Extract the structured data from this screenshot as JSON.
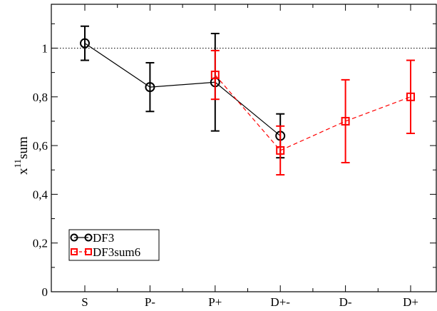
{
  "chart_data": {
    "type": "line",
    "categories": [
      "S",
      "P-",
      "P+",
      "D+-",
      "D-",
      "D+"
    ],
    "xlabel": "",
    "ylabel": {
      "base": "x",
      "superscript": "11",
      "subscript": "sum"
    },
    "ylim": [
      0,
      1.18
    ],
    "yticks": [
      {
        "value": 0,
        "label": "0"
      },
      {
        "value": 0.2,
        "label": "0,2"
      },
      {
        "value": 0.4,
        "label": "0,4"
      },
      {
        "value": 0.6,
        "label": "0,6"
      },
      {
        "value": 0.8,
        "label": "0,8"
      },
      {
        "value": 1.0,
        "label": "1"
      }
    ],
    "reference_line": {
      "value": 1.0,
      "style": "dotted"
    },
    "grid": false,
    "legend_position": "bottom-left",
    "series": [
      {
        "name": "DF3",
        "color": "#000000",
        "marker": "circle",
        "line_style": "solid",
        "points": [
          {
            "category": "S",
            "y": 1.02,
            "err_low": 0.95,
            "err_high": 1.09
          },
          {
            "category": "P-",
            "y": 0.84,
            "err_low": 0.74,
            "err_high": 0.94
          },
          {
            "category": "P+",
            "y": 0.86,
            "err_low": 0.66,
            "err_high": 1.06
          },
          {
            "category": "D+-",
            "y": 0.64,
            "err_low": 0.55,
            "err_high": 0.73
          }
        ]
      },
      {
        "name": "DF3sum6",
        "color": "#ff0000",
        "marker": "square",
        "line_style": "dashed",
        "points": [
          {
            "category": "P+",
            "y": 0.89,
            "err_low": 0.79,
            "err_high": 0.99
          },
          {
            "category": "D+-",
            "y": 0.58,
            "err_low": 0.48,
            "err_high": 0.68
          },
          {
            "category": "D-",
            "y": 0.7,
            "err_low": 0.53,
            "err_high": 0.87
          },
          {
            "category": "D+",
            "y": 0.8,
            "err_low": 0.65,
            "err_high": 0.95
          }
        ]
      }
    ]
  }
}
